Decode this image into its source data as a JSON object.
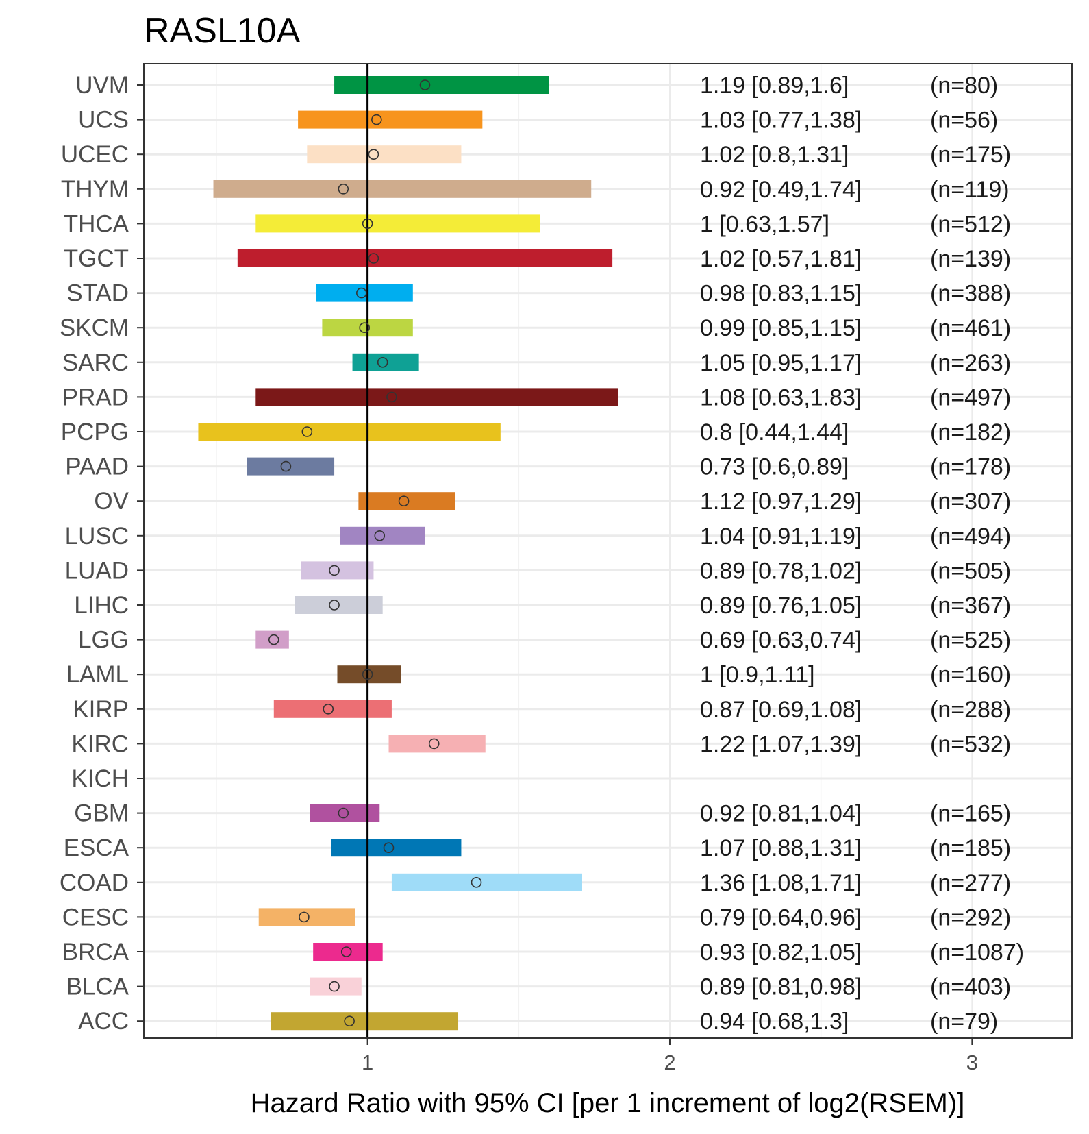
{
  "chart_data": {
    "type": "forest",
    "title": "RASL10A",
    "xlabel": "Hazard Ratio with 95% CI [per 1 increment of log2(RSEM)]",
    "ylabel": "",
    "xlim": [
      0.26,
      3.33
    ],
    "xticks": [
      1,
      2,
      3
    ],
    "xtick_labels": [
      "1",
      "2",
      "3"
    ],
    "reference_line": 1,
    "grid": true,
    "legend": "none",
    "rows": [
      {
        "label": "UVM",
        "hr": 1.19,
        "lo": 0.89,
        "hi": 1.6,
        "hr_text": "1.19 [0.89,1.6]",
        "n_text": "(n=80)",
        "color": "#009444"
      },
      {
        "label": "UCS",
        "hr": 1.03,
        "lo": 0.77,
        "hi": 1.38,
        "hr_text": "1.03 [0.77,1.38]",
        "n_text": "(n=56)",
        "color": "#f7941d"
      },
      {
        "label": "UCEC",
        "hr": 1.02,
        "lo": 0.8,
        "hi": 1.31,
        "hr_text": "1.02 [0.8,1.31]",
        "n_text": "(n=175)",
        "color": "#fce0c5"
      },
      {
        "label": "THYM",
        "hr": 0.92,
        "lo": 0.49,
        "hi": 1.74,
        "hr_text": "0.92 [0.49,1.74]",
        "n_text": "(n=119)",
        "color": "#cfac8d"
      },
      {
        "label": "THCA",
        "hr": 1,
        "lo": 0.63,
        "hi": 1.57,
        "hr_text": "1 [0.63,1.57]",
        "n_text": "(n=512)",
        "color": "#f4ec37"
      },
      {
        "label": "TGCT",
        "hr": 1.02,
        "lo": 0.57,
        "hi": 1.81,
        "hr_text": "1.02 [0.57,1.81]",
        "n_text": "(n=139)",
        "color": "#be1e2d"
      },
      {
        "label": "STAD",
        "hr": 0.98,
        "lo": 0.83,
        "hi": 1.15,
        "hr_text": "0.98 [0.83,1.15]",
        "n_text": "(n=388)",
        "color": "#00aeef"
      },
      {
        "label": "SKCM",
        "hr": 0.99,
        "lo": 0.85,
        "hi": 1.15,
        "hr_text": "0.99 [0.85,1.15]",
        "n_text": "(n=461)",
        "color": "#bcd642"
      },
      {
        "label": "SARC",
        "hr": 1.05,
        "lo": 0.95,
        "hi": 1.17,
        "hr_text": "1.05 [0.95,1.17]",
        "n_text": "(n=263)",
        "color": "#0fa195"
      },
      {
        "label": "PRAD",
        "hr": 1.08,
        "lo": 0.63,
        "hi": 1.83,
        "hr_text": "1.08 [0.63,1.83]",
        "n_text": "(n=497)",
        "color": "#7b1818"
      },
      {
        "label": "PCPG",
        "hr": 0.8,
        "lo": 0.44,
        "hi": 1.44,
        "hr_text": "0.8 [0.44,1.44]",
        "n_text": "(n=182)",
        "color": "#e8c21d"
      },
      {
        "label": "PAAD",
        "hr": 0.73,
        "lo": 0.6,
        "hi": 0.89,
        "hr_text": "0.73 [0.6,0.89]",
        "n_text": "(n=178)",
        "color": "#6c7ba0"
      },
      {
        "label": "OV",
        "hr": 1.12,
        "lo": 0.97,
        "hi": 1.29,
        "hr_text": "1.12 [0.97,1.29]",
        "n_text": "(n=307)",
        "color": "#da7b22"
      },
      {
        "label": "LUSC",
        "hr": 1.04,
        "lo": 0.91,
        "hi": 1.19,
        "hr_text": "1.04 [0.91,1.19]",
        "n_text": "(n=494)",
        "color": "#a185c2"
      },
      {
        "label": "LUAD",
        "hr": 0.89,
        "lo": 0.78,
        "hi": 1.02,
        "hr_text": "0.89 [0.78,1.02]",
        "n_text": "(n=505)",
        "color": "#d4c2e0"
      },
      {
        "label": "LIHC",
        "hr": 0.89,
        "lo": 0.76,
        "hi": 1.05,
        "hr_text": "0.89 [0.76,1.05]",
        "n_text": "(n=367)",
        "color": "#ccced9"
      },
      {
        "label": "LGG",
        "hr": 0.69,
        "lo": 0.63,
        "hi": 0.74,
        "hr_text": "0.69 [0.63,0.74]",
        "n_text": "(n=525)",
        "color": "#d19ec8"
      },
      {
        "label": "LAML",
        "hr": 1,
        "lo": 0.9,
        "hi": 1.11,
        "hr_text": "1 [0.9,1.11]",
        "n_text": "(n=160)",
        "color": "#754c29"
      },
      {
        "label": "KIRP",
        "hr": 0.87,
        "lo": 0.69,
        "hi": 1.08,
        "hr_text": "0.87 [0.69,1.08]",
        "n_text": "(n=288)",
        "color": "#ec6f74"
      },
      {
        "label": "KIRC",
        "hr": 1.22,
        "lo": 1.07,
        "hi": 1.39,
        "hr_text": "1.22 [1.07,1.39]",
        "n_text": "(n=532)",
        "color": "#f6b0b3"
      },
      {
        "label": "KICH",
        "hr": null,
        "lo": null,
        "hi": null,
        "hr_text": "",
        "n_text": "",
        "color": "#ffffff"
      },
      {
        "label": "GBM",
        "hr": 0.92,
        "lo": 0.81,
        "hi": 1.04,
        "hr_text": "0.92 [0.81,1.04]",
        "n_text": "(n=165)",
        "color": "#b0519f"
      },
      {
        "label": "ESCA",
        "hr": 1.07,
        "lo": 0.88,
        "hi": 1.31,
        "hr_text": "1.07 [0.88,1.31]",
        "n_text": "(n=185)",
        "color": "#0077b5"
      },
      {
        "label": "COAD",
        "hr": 1.36,
        "lo": 1.08,
        "hi": 1.71,
        "hr_text": "1.36 [1.08,1.71]",
        "n_text": "(n=277)",
        "color": "#9fdcf8"
      },
      {
        "label": "CESC",
        "hr": 0.79,
        "lo": 0.64,
        "hi": 0.96,
        "hr_text": "0.79 [0.64,0.96]",
        "n_text": "(n=292)",
        "color": "#f4b266"
      },
      {
        "label": "BRCA",
        "hr": 0.93,
        "lo": 0.82,
        "hi": 1.05,
        "hr_text": "0.93 [0.82,1.05]",
        "n_text": "(n=1087)",
        "color": "#ec2a8e"
      },
      {
        "label": "BLCA",
        "hr": 0.89,
        "lo": 0.81,
        "hi": 0.98,
        "hr_text": "0.89 [0.81,0.98]",
        "n_text": "(n=403)",
        "color": "#f9d1d8"
      },
      {
        "label": "ACC",
        "hr": 0.94,
        "lo": 0.68,
        "hi": 1.3,
        "hr_text": "0.94 [0.68,1.3]",
        "n_text": "(n=79)",
        "color": "#c2a631"
      }
    ]
  }
}
